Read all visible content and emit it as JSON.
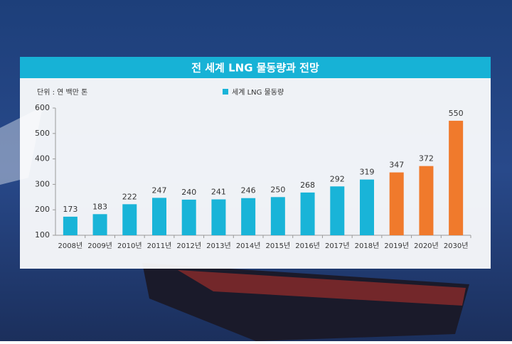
{
  "chart_data": {
    "type": "bar",
    "title": "전 세계 LNG 물동량과 전망",
    "subtitle": "단위 : 연 백만 톤",
    "categories": [
      "2008년",
      "2009년",
      "2010년",
      "2011년",
      "2012년",
      "2013년",
      "2014년",
      "2015년",
      "2016년",
      "2017년",
      "2018년",
      "2019년",
      "2020년",
      "2030년"
    ],
    "series": [
      {
        "name": "세계 LNG 물동량",
        "color": "#19b4d8",
        "values": [
          173,
          183,
          222,
          247,
          240,
          241,
          246,
          250,
          268,
          292,
          319,
          347,
          372,
          550
        ],
        "bar_colors": [
          "#19b4d8",
          "#19b4d8",
          "#19b4d8",
          "#19b4d8",
          "#19b4d8",
          "#19b4d8",
          "#19b4d8",
          "#19b4d8",
          "#19b4d8",
          "#19b4d8",
          "#19b4d8",
          "#f07a2c",
          "#f07a2c",
          "#f07a2c"
        ]
      }
    ],
    "ylim": [
      100,
      600
    ],
    "yticks": [
      100,
      200,
      300,
      400,
      500,
      600
    ],
    "grid": false,
    "legend": "top"
  }
}
